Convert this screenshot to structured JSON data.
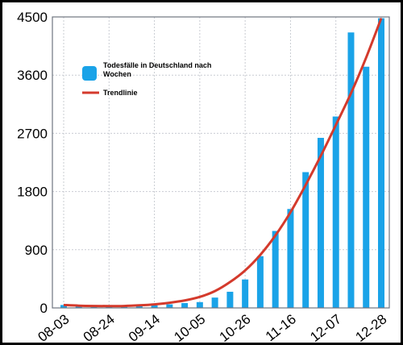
{
  "chart_data": {
    "type": "bar",
    "title": "",
    "xlabel": "",
    "ylabel": "",
    "ylim": [
      0,
      4500
    ],
    "yticks": [
      "0",
      "900",
      "1800",
      "2700",
      "3600",
      "4500"
    ],
    "x_tick_labels": [
      "08-03",
      "08-24",
      "09-14",
      "10-05",
      "10-26",
      "11-16",
      "12-07",
      "12-28"
    ],
    "grid": true,
    "legend_position": "top-left",
    "categories": [
      "08-03",
      "08-10",
      "08-17",
      "08-24",
      "08-31",
      "09-07",
      "09-14",
      "09-21",
      "09-28",
      "10-05",
      "10-12",
      "10-19",
      "10-26",
      "11-02",
      "11-09",
      "11-16",
      "11-23",
      "11-30",
      "12-07",
      "12-14",
      "12-21",
      "12-28"
    ],
    "series": [
      {
        "name": "Todesfälle in Deutschland nach Wochen",
        "type": "bar",
        "color": "#1aa3e8",
        "values": [
          45,
          30,
          25,
          28,
          30,
          35,
          40,
          55,
          75,
          90,
          160,
          250,
          440,
          800,
          1190,
          1530,
          2100,
          2630,
          2960,
          4260,
          3730,
          4480
        ]
      },
      {
        "name": "Trendlinie",
        "type": "line",
        "color": "#d43a2c",
        "values": [
          45,
          35,
          30,
          28,
          30,
          40,
          55,
          80,
          115,
          170,
          260,
          400,
          580,
          820,
          1120,
          1480,
          1900,
          2350,
          2830,
          3320,
          3870,
          4480
        ]
      }
    ]
  }
}
